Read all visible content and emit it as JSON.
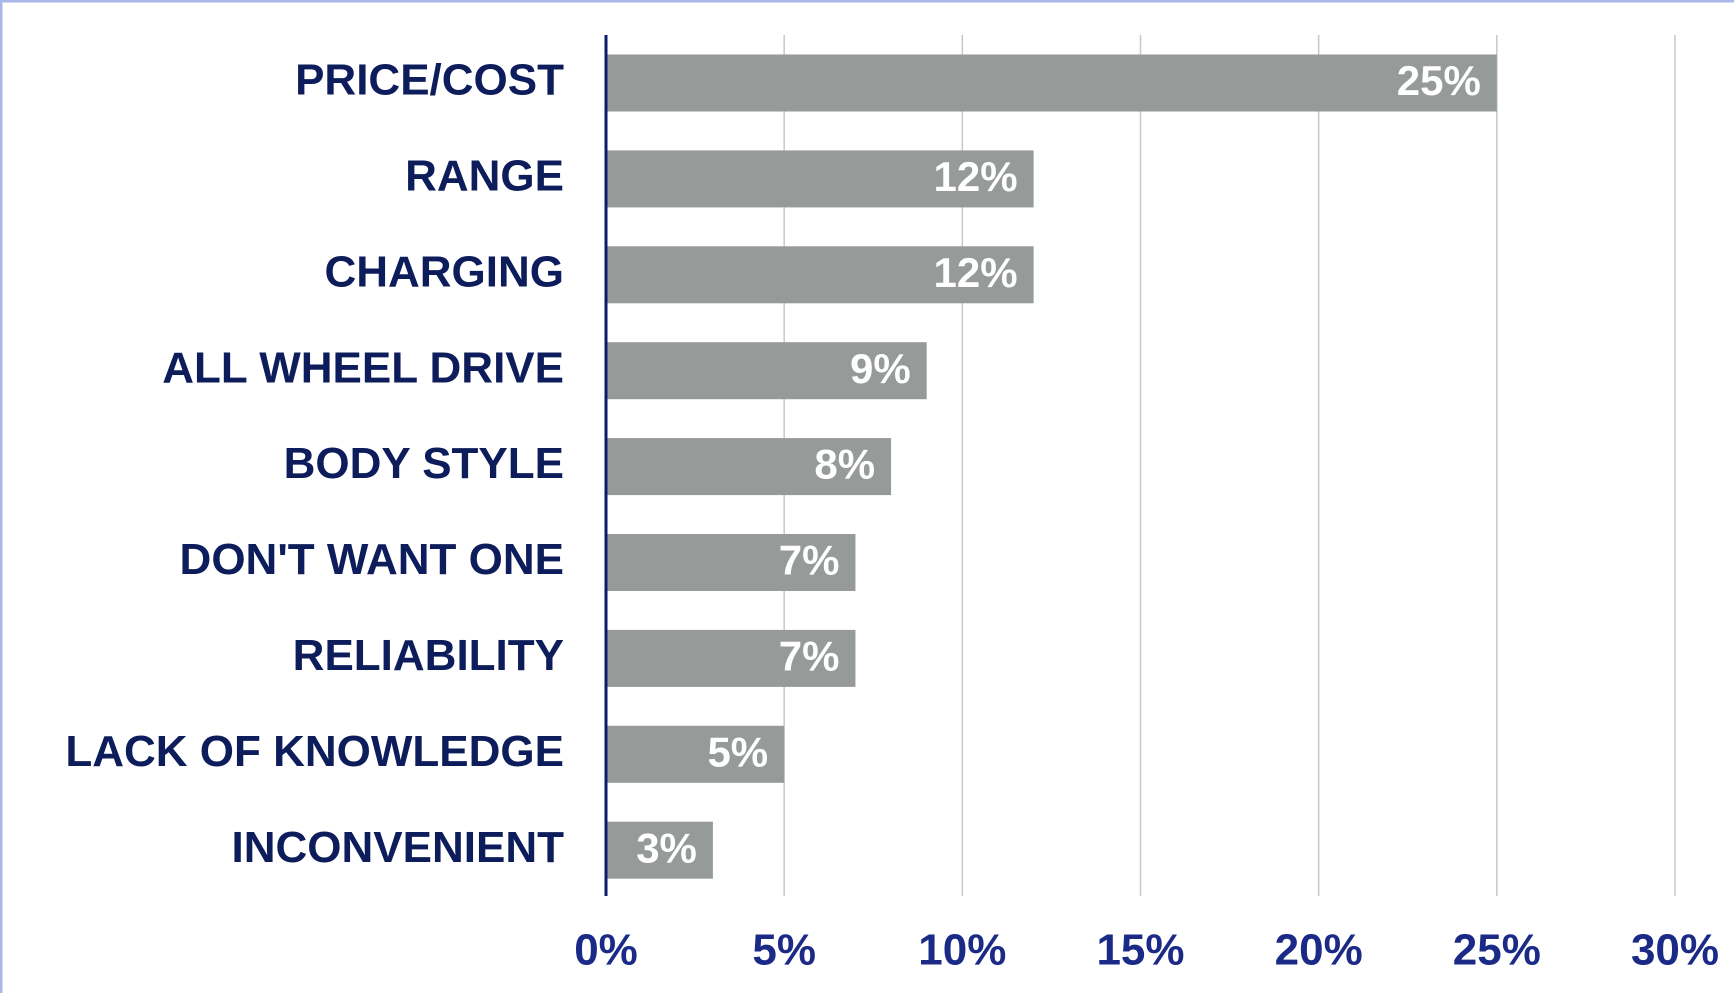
{
  "chart_data": {
    "type": "bar",
    "orientation": "horizontal",
    "categories": [
      "PRICE/COST",
      "RANGE",
      "CHARGING",
      "ALL WHEEL DRIVE",
      "BODY STYLE",
      "DON'T WANT ONE",
      "RELIABILITY",
      "LACK OF KNOWLEDGE",
      "INCONVENIENT"
    ],
    "values": [
      25,
      12,
      12,
      9,
      8,
      7,
      7,
      5,
      3
    ],
    "value_labels": [
      "25%",
      "12%",
      "12%",
      "9%",
      "8%",
      "7%",
      "7%",
      "5%",
      "3%"
    ],
    "color": "#969a99",
    "xlim": [
      0,
      30
    ],
    "xticks": [
      {
        "value": 0,
        "label": "0%"
      },
      {
        "value": 5,
        "label": "5%"
      },
      {
        "value": 10,
        "label": "10%"
      },
      {
        "value": 15,
        "label": "15%"
      },
      {
        "value": 20,
        "label": "20%"
      },
      {
        "value": 25,
        "label": "25%"
      },
      {
        "value": 30,
        "label": "30%"
      }
    ],
    "grid": true
  }
}
